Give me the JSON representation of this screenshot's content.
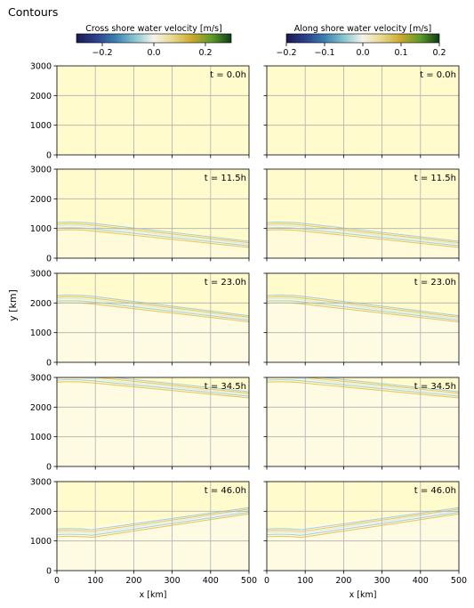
{
  "figure_title": "Contours",
  "colorbars": [
    {
      "label": "Cross shore water velocity [m/s]",
      "vmin": -0.3,
      "vmax": 0.3,
      "ticks": [
        -0.2,
        0.0,
        0.2
      ],
      "tick_labels": [
        "−0.2",
        "0.0",
        "0.2"
      ],
      "colormap": [
        "#1a1a4f",
        "#2c3e8c",
        "#3a7fb0",
        "#86c5cf",
        "#f6f3ea",
        "#e6d88a",
        "#c9a82c",
        "#5e9a2a",
        "#0e3b17"
      ]
    },
    {
      "label": "Along shore water velocity [m/s]",
      "vmin": -0.2,
      "vmax": 0.2,
      "ticks": [
        -0.2,
        -0.1,
        0.0,
        0.1,
        0.2
      ],
      "tick_labels": [
        "−0.2",
        "−0.1",
        "0.0",
        "0.1",
        "0.2"
      ],
      "colormap": [
        "#1a1a4f",
        "#2c3e8c",
        "#3a7fb0",
        "#86c5cf",
        "#f6f3ea",
        "#e6d88a",
        "#c9a82c",
        "#5e9a2a",
        "#0e3b17"
      ]
    }
  ],
  "ylabel": "y [km]",
  "xlabel": "x [km]",
  "background_color": "#fffbcc",
  "light_band_color": "#fffbe6",
  "contour_colors": [
    "#e8c860",
    "#a8d0dc",
    "#d8e8ec"
  ],
  "chart_data": {
    "type": "contour",
    "grid": true,
    "xlim": [
      0,
      500
    ],
    "ylim": [
      0,
      3000
    ],
    "xticks": [
      0,
      100,
      200,
      300,
      400,
      500
    ],
    "yticks": [
      0,
      1000,
      2000,
      3000
    ],
    "rows": [
      {
        "time_label": "t = 0.0h",
        "front_y0": null,
        "front_y500": null
      },
      {
        "time_label": "t = 11.5h",
        "front_y0": 1050,
        "front_y500": 450
      },
      {
        "time_label": "t = 23.0h",
        "front_y0": 2100,
        "front_y500": 1450
      },
      {
        "time_label": "t = 34.5h",
        "front_y0": 2950,
        "front_y500": 2400
      },
      {
        "time_label": "t = 46.0h",
        "front_y0": 1250,
        "front_y500": 2000
      }
    ],
    "panels": [
      {
        "quantity": "Cross shore water velocity"
      },
      {
        "quantity": "Along shore water velocity"
      }
    ]
  }
}
